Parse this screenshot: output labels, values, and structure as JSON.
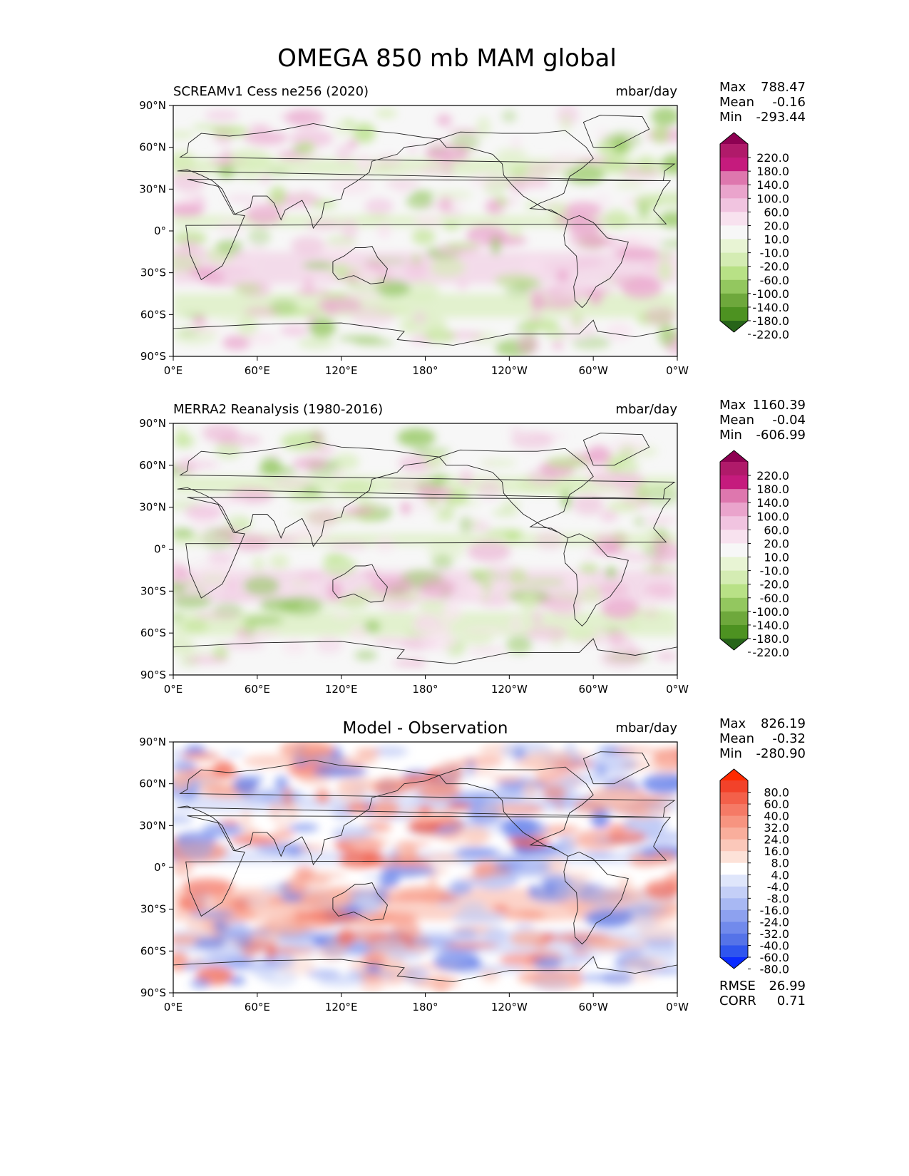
{
  "title": "OMEGA 850 mb MAM global",
  "panels": [
    {
      "subtitle_left": "SCREAMv1 Cess ne256 (2020)",
      "subtitle_center": "",
      "units": "mbar/day",
      "stats": [
        {
          "label": "Max",
          "value": "788.47"
        },
        {
          "label": "Mean",
          "value": "-0.16"
        },
        {
          "label": "Min",
          "value": "-293.44"
        }
      ],
      "colorbar": {
        "levels": [
          "220.0",
          "180.0",
          "140.0",
          "100.0",
          "60.0",
          "20.0",
          "10.0",
          "-10.0",
          "-20.0",
          "-60.0",
          "-100.0",
          "-140.0",
          "-180.0",
          "-220.0"
        ],
        "colors": [
          "#8e0152",
          "#b01a6a",
          "#c51b7d",
          "#de77ae",
          "#eaa4cc",
          "#f1c4e0",
          "#f8e2ef",
          "#f7f7f7",
          "#e8f4d4",
          "#d4ecb3",
          "#b8e186",
          "#93c75f",
          "#6ea83c",
          "#4d9221",
          "#276419"
        ]
      },
      "footer": []
    },
    {
      "subtitle_left": "MERRA2 Reanalysis (1980-2016)",
      "subtitle_center": "",
      "units": "mbar/day",
      "stats": [
        {
          "label": "Max",
          "value": "1160.39"
        },
        {
          "label": "Mean",
          "value": "-0.04"
        },
        {
          "label": "Min",
          "value": "-606.99"
        }
      ],
      "colorbar": {
        "levels": [
          "220.0",
          "180.0",
          "140.0",
          "100.0",
          "60.0",
          "20.0",
          "10.0",
          "-10.0",
          "-20.0",
          "-60.0",
          "-100.0",
          "-140.0",
          "-180.0",
          "-220.0"
        ],
        "colors": [
          "#8e0152",
          "#b01a6a",
          "#c51b7d",
          "#de77ae",
          "#eaa4cc",
          "#f1c4e0",
          "#f8e2ef",
          "#f7f7f7",
          "#e8f4d4",
          "#d4ecb3",
          "#b8e186",
          "#93c75f",
          "#6ea83c",
          "#4d9221",
          "#276419"
        ]
      },
      "footer": []
    },
    {
      "subtitle_left": "",
      "subtitle_center": "Model - Observation",
      "units": "mbar/day",
      "stats": [
        {
          "label": "Max",
          "value": "826.19"
        },
        {
          "label": "Mean",
          "value": "-0.32"
        },
        {
          "label": "Min",
          "value": "-280.90"
        }
      ],
      "colorbar": {
        "levels": [
          "80.0",
          "60.0",
          "40.0",
          "32.0",
          "24.0",
          "16.0",
          "8.0",
          "4.0",
          "-4.0",
          "-8.0",
          "-16.0",
          "-24.0",
          "-32.0",
          "-40.0",
          "-60.0",
          "-80.0"
        ],
        "colors": [
          "#ff2a00",
          "#f2422a",
          "#f3604a",
          "#f57a66",
          "#f79480",
          "#f9ae9c",
          "#fbc8ba",
          "#fde2d8",
          "#ffffff",
          "#dfe6fb",
          "#c4cff7",
          "#a8b8f3",
          "#8da1ef",
          "#718aec",
          "#5573e8",
          "#2f55ee",
          "#0a2bff"
        ]
      },
      "footer": [
        {
          "label": "RMSE",
          "value": "26.99"
        },
        {
          "label": "CORR",
          "value": "0.71"
        }
      ]
    }
  ],
  "axes": {
    "x_ticks": [
      "0°E",
      "60°E",
      "120°E",
      "180°",
      "120°W",
      "60°W",
      "0°W"
    ],
    "y_ticks": [
      "90°N",
      "60°N",
      "30°N",
      "0°",
      "30°S",
      "60°S",
      "90°S"
    ]
  },
  "chart_data": [
    {
      "type": "heatmap",
      "title": "SCREAMv1 Cess ne256 (2020)",
      "units": "mbar/day",
      "x_range": [
        0,
        360
      ],
      "y_range": [
        -90,
        90
      ],
      "field": "OMEGA 850 mb, MAM, model",
      "stats": {
        "max": 788.47,
        "mean": -0.16,
        "min": -293.44
      }
    },
    {
      "type": "heatmap",
      "title": "MERRA2 Reanalysis (1980-2016)",
      "units": "mbar/day",
      "x_range": [
        0,
        360
      ],
      "y_range": [
        -90,
        90
      ],
      "field": "OMEGA 850 mb, MAM, observation",
      "stats": {
        "max": 1160.39,
        "mean": -0.04,
        "min": -606.99
      }
    },
    {
      "type": "heatmap",
      "title": "Model - Observation",
      "units": "mbar/day",
      "x_range": [
        0,
        360
      ],
      "y_range": [
        -90,
        90
      ],
      "field": "OMEGA 850 mb, MAM, difference",
      "stats": {
        "max": 826.19,
        "mean": -0.32,
        "min": -280.9,
        "rmse": 26.99,
        "corr": 0.71
      }
    }
  ]
}
